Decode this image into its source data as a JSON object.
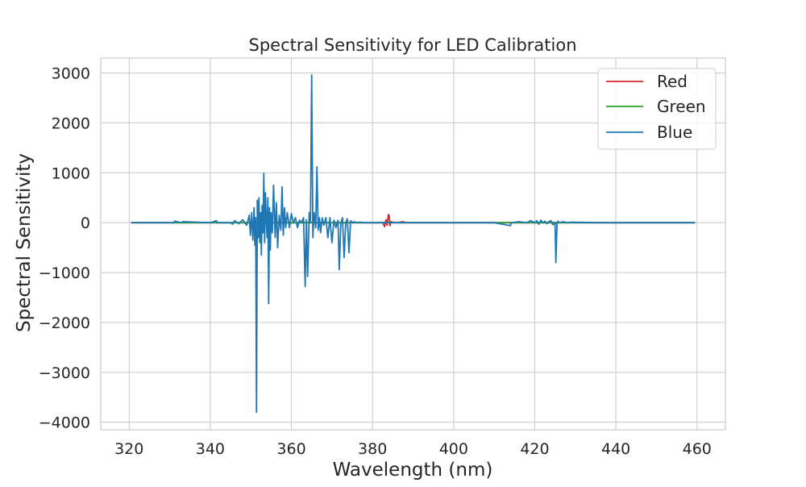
{
  "chart_data": {
    "type": "line",
    "title": "Spectral Sensitivity for LED Calibration",
    "xlabel": "Wavelength (nm)",
    "ylabel": "Spectral Sensitivity",
    "xlim": [
      313,
      467
    ],
    "ylim": [
      -4150,
      3300
    ],
    "xticks": [
      320,
      340,
      360,
      380,
      400,
      420,
      440,
      460
    ],
    "yticks": [
      -4000,
      -3000,
      -2000,
      -1000,
      0,
      1000,
      2000,
      3000
    ],
    "xtick_labels": [
      "320",
      "340",
      "360",
      "380",
      "400",
      "420",
      "440",
      "460"
    ],
    "ytick_labels": [
      "−4000",
      "−3000",
      "−2000",
      "−1000",
      "0",
      "1000",
      "2000",
      "3000"
    ],
    "grid": true,
    "legend": "upper-right",
    "series": [
      {
        "name": "Red",
        "color": "#d62728",
        "x": [
          320.5,
          380,
          382.5,
          383.0,
          383.3,
          383.6,
          383.9,
          384.1,
          384.3,
          384.6,
          385.0,
          386.0,
          387.5,
          388.2,
          389,
          395,
          459.5
        ],
        "y": [
          0,
          0,
          0,
          -80,
          60,
          -50,
          160,
          150,
          -60,
          20,
          10,
          0,
          20,
          0,
          0,
          0,
          0
        ]
      },
      {
        "name": "Green",
        "color": "#2ca02c",
        "x": [
          320.5,
          380,
          382.5,
          384.0,
          385,
          459.5
        ],
        "y": [
          0,
          0,
          0,
          10,
          0,
          0
        ]
      },
      {
        "name": "Blue",
        "color": "#1f77b4",
        "x": [
          320.5,
          331.0,
          331.2,
          333,
          333.2,
          340,
          341.5,
          341.7,
          345,
          345.5,
          346,
          347,
          348,
          349,
          349.6,
          349.9,
          350.2,
          350.5,
          350.8,
          351.0,
          351.2,
          351.4,
          351.6,
          351.8,
          352.0,
          352.2,
          352.4,
          352.6,
          352.8,
          353.0,
          353.2,
          353.4,
          353.6,
          353.8,
          354.0,
          354.2,
          354.4,
          354.6,
          354.8,
          355.0,
          355.3,
          355.6,
          356.0,
          356.3,
          356.6,
          357.0,
          357.4,
          357.7,
          358.0,
          358.3,
          358.6,
          359.0,
          359.5,
          360.0,
          360.5,
          361.0,
          361.5,
          362.0,
          362.5,
          363.0,
          363.4,
          363.7,
          364.0,
          364.4,
          364.7,
          365.0,
          365.3,
          365.6,
          366.0,
          366.3,
          366.6,
          366.9,
          367.2,
          367.6,
          368.0,
          368.5,
          369.0,
          369.5,
          370.0,
          370.5,
          371.0,
          371.5,
          371.8,
          372.2,
          372.6,
          373.0,
          373.4,
          373.8,
          374.2,
          374.6,
          375.0,
          375.5,
          376.0,
          377,
          378,
          380,
          382,
          385,
          390,
          395,
          400,
          405,
          410,
          414.0,
          414.2,
          414.4,
          416,
          418,
          419,
          420,
          420.5,
          421,
          421.5,
          422,
          422.5,
          423,
          423.5,
          424,
          424.5,
          425.0,
          425.2,
          425.5,
          425.8,
          426,
          427,
          428,
          429,
          435,
          459.5
        ],
        "y": [
          0,
          0,
          30,
          0,
          20,
          0,
          40,
          0,
          0,
          -30,
          40,
          -20,
          60,
          -50,
          150,
          -250,
          200,
          -350,
          300,
          -450,
          100,
          -3800,
          450,
          -300,
          500,
          -400,
          200,
          -650,
          350,
          -200,
          990,
          -400,
          600,
          100,
          -300,
          500,
          -1620,
          300,
          -550,
          200,
          -200,
          750,
          -300,
          400,
          -500,
          150,
          -150,
          720,
          -250,
          300,
          -100,
          200,
          -100,
          180,
          0,
          100,
          -100,
          50,
          0,
          100,
          -1280,
          60,
          -1080,
          200,
          0,
          2960,
          -300,
          200,
          -100,
          1120,
          -150,
          100,
          -200,
          100,
          -50,
          100,
          -300,
          100,
          -400,
          50,
          -100,
          50,
          -940,
          0,
          100,
          -700,
          0,
          80,
          -600,
          40,
          0,
          20,
          0,
          10,
          0,
          0,
          0,
          0,
          0,
          0,
          0,
          0,
          0,
          -60,
          0,
          0,
          20,
          0,
          40,
          0,
          40,
          -30,
          50,
          0,
          30,
          -20,
          20,
          40,
          -40,
          0,
          -800,
          0,
          30,
          0,
          20,
          0,
          10,
          0,
          0
        ]
      }
    ]
  }
}
